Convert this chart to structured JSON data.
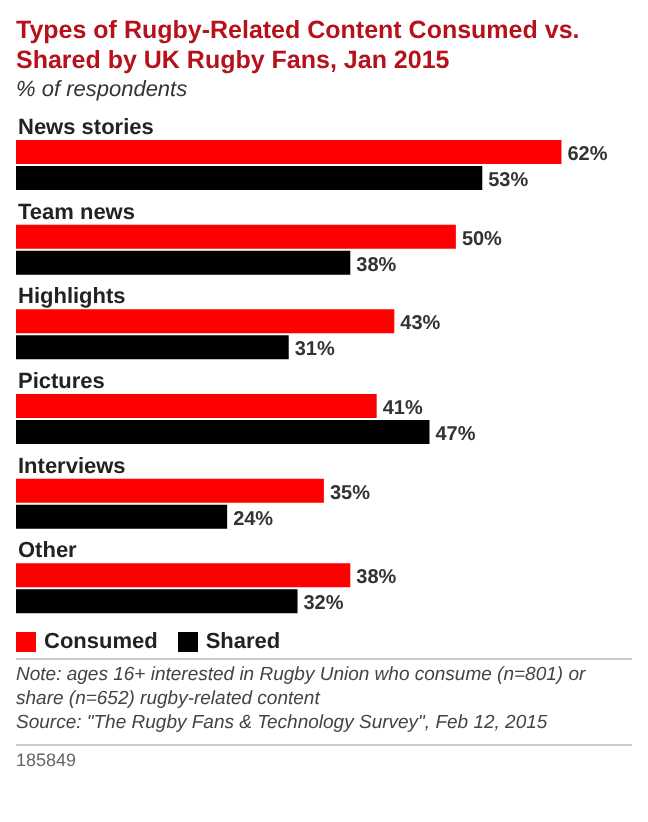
{
  "chart_data": {
    "type": "bar",
    "orientation": "horizontal",
    "title": "Types of Rugby-Related Content Consumed vs. Shared by UK Rugby Fans, Jan 2015",
    "subtitle": "% of respondents",
    "categories": [
      "News stories",
      "Team news",
      "Highlights",
      "Pictures",
      "Interviews",
      "Other"
    ],
    "series": [
      {
        "name": "Consumed",
        "color": "#ff0000",
        "values": [
          62,
          50,
          43,
          41,
          35,
          38
        ],
        "value_labels": [
          "62%",
          "50%",
          "43%",
          "41%",
          "35%",
          "38%"
        ]
      },
      {
        "name": "Shared",
        "color": "#000000",
        "values": [
          53,
          38,
          31,
          47,
          24,
          32
        ],
        "value_labels": [
          "53%",
          "38%",
          "31%",
          "47%",
          "24%",
          "32%"
        ]
      }
    ],
    "legend": "bottom left",
    "grid": false,
    "annotations": [
      "Note: ages 16+ interested in Rugby Union who consume (n=801) or share (n=652) rugby-related content",
      "Source: \"The Rugby Fans & Technology Survey\", Feb 12, 2015",
      "185849"
    ]
  }
}
